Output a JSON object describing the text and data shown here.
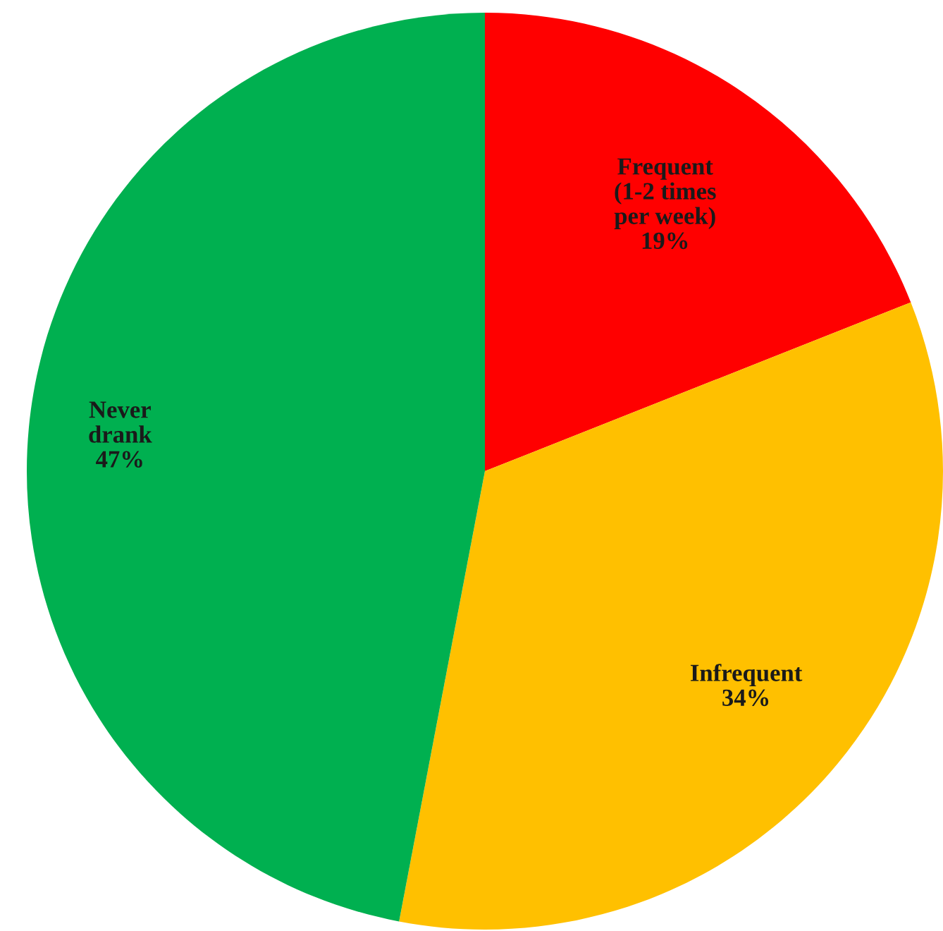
{
  "chart_data": {
    "type": "pie",
    "categories": [
      "Frequent\n(1-2 times\nper week)",
      "Infrequent",
      "Never\ndrank"
    ],
    "values": [
      19,
      34,
      47
    ],
    "value_labels": [
      "19%",
      "34%",
      "47%"
    ],
    "colors": [
      "#ff0000",
      "#ffc000",
      "#00b050"
    ],
    "legend": false
  }
}
